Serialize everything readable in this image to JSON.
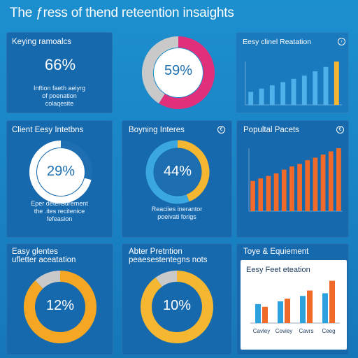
{
  "page": {
    "title": "The ƒress of thend reteention insaights"
  },
  "cards": {
    "keying": {
      "label": "Keying ramoalcs",
      "value": "66%",
      "desc": [
        "Inftion faeth aeiyrg",
        "of poenation",
        "colaqesite"
      ]
    },
    "center_donut": {
      "value": "59%"
    },
    "easy_client": {
      "label": "Eesy clinel Reatation",
      "icon": "chevron-right-icon"
    },
    "client_easy": {
      "label": "Client Eesy Intetbns",
      "value": "29%",
      "desc": [
        "Eper detensurement",
        "the .ites recitenice",
        "fefeasion"
      ]
    },
    "boyning": {
      "label": "Boyning Interes",
      "value": "44%",
      "icon": "info-icon",
      "desc": [
        "Reaciies inerantor",
        "poeivati forigs"
      ]
    },
    "popular": {
      "label": "Popultal Pacets",
      "icon": "info-icon"
    },
    "easy_glentes": {
      "label_lines": [
        "Easy glentes",
        "ufletter aceatation"
      ],
      "value": "12%"
    },
    "abter": {
      "label_lines": [
        "Abter Pretntion",
        "peaesestentegns nots"
      ],
      "value": "10%"
    },
    "toye": {
      "label": "Toye & Equiement",
      "panel_title": "Eesy Feet eteation"
    }
  },
  "chart_data": [
    {
      "type": "bar",
      "title": "Eesy clinel Reatation",
      "categories": [
        "",
        "",
        "",
        "",
        "",
        "",
        "",
        "",
        ""
      ],
      "values": [
        12,
        15,
        18,
        21,
        24,
        27,
        31,
        35,
        40
      ],
      "highlight_index": 8,
      "colors": {
        "bar": "#4fb1ea",
        "highlight": "#f5b731"
      }
    },
    {
      "type": "bar",
      "title": "Popultal Pacets",
      "categories": [
        "",
        "",
        "",
        "",
        "",
        "",
        "",
        "",
        "",
        "",
        "",
        ""
      ],
      "values": [
        48,
        52,
        56,
        60,
        66,
        71,
        75,
        81,
        85,
        90,
        95,
        100
      ],
      "colors": {
        "bar": "#f26a2a"
      }
    },
    {
      "type": "bar",
      "title": "Eesy Feet eteation",
      "categories": [
        "Cavley",
        "Coviey",
        "Cavrs",
        "Ceeg"
      ],
      "series": [
        {
          "values": [
            35,
            40,
            50,
            55
          ],
          "color": "#2ba1dd"
        },
        {
          "values": [
            30,
            45,
            60,
            78
          ],
          "color": "#f26a2a"
        }
      ],
      "ylim": [
        0,
        80
      ]
    },
    {
      "type": "pie",
      "title": "",
      "values": [
        59,
        41
      ],
      "colors": [
        "#e0307c",
        "#c9c9c9"
      ]
    },
    {
      "type": "pie",
      "title": "Client Eesy Intetbns",
      "values": [
        29,
        71
      ],
      "colors": [
        "#1d6fb2",
        "#ffffff"
      ]
    },
    {
      "type": "pie",
      "title": "Boyning Interes",
      "values": [
        44,
        56
      ],
      "colors": [
        "#f5b731",
        "#3aa7e0"
      ]
    },
    {
      "type": "pie",
      "title": "Easy glentes",
      "values": [
        12,
        88
      ],
      "colors": [
        "#c9c9c9",
        "#f5a623"
      ]
    },
    {
      "type": "pie",
      "title": "Abter Pretntion",
      "values": [
        10,
        90
      ],
      "colors": [
        "#c9c9c9",
        "#f5b731"
      ]
    }
  ]
}
